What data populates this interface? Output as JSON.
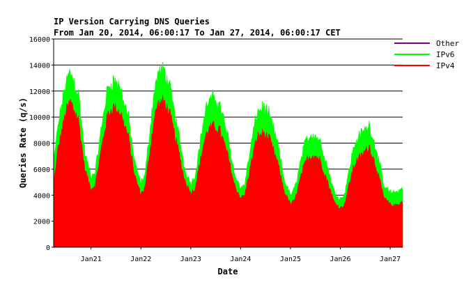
{
  "chart_data": {
    "type": "area",
    "stacked": true,
    "title": "IP Version Carrying DNS Queries",
    "subtitle": "From Jan 20, 2014, 06:00:17 To Jan 27, 2014, 06:00:17 CET",
    "xlabel": "Date",
    "ylabel": "Queries Rate (q/s)",
    "ylim": [
      0,
      16000
    ],
    "xlim_hours": [
      6,
      174
    ],
    "yticks": [
      0,
      2000,
      4000,
      6000,
      8000,
      10000,
      12000,
      14000,
      16000
    ],
    "xticks": [
      {
        "label": "Jan21",
        "hour": 24
      },
      {
        "label": "Jan22",
        "hour": 48
      },
      {
        "label": "Jan23",
        "hour": 72
      },
      {
        "label": "Jan24",
        "hour": 96
      },
      {
        "label": "Jan25",
        "hour": 120
      },
      {
        "label": "Jan26",
        "hour": 144
      },
      {
        "label": "Jan27",
        "hour": 168
      }
    ],
    "grid": "horizontal",
    "legend_position": "top-right",
    "series": [
      {
        "name": "Other",
        "color": "#800080",
        "hours": [
          6,
          174
        ],
        "values": [
          0,
          0
        ]
      },
      {
        "name": "IPv6",
        "color": "#00ff00",
        "hours": [
          6,
          8,
          12,
          14,
          18,
          21,
          24,
          26,
          30,
          32,
          35,
          38,
          42,
          45,
          48,
          50,
          54,
          56,
          59,
          62,
          66,
          69,
          72,
          74,
          78,
          80,
          83,
          86,
          90,
          93,
          96,
          98,
          102,
          104,
          107,
          110,
          114,
          117,
          120,
          122,
          126,
          128,
          131,
          134,
          138,
          141,
          144,
          146,
          150,
          152,
          155,
          158,
          162,
          165,
          168,
          170,
          174
        ],
        "values": [
          1500,
          1800,
          2200,
          2300,
          2000,
          1200,
          900,
          1000,
          1800,
          2000,
          2100,
          1900,
          1500,
          1000,
          800,
          1000,
          2000,
          2300,
          2400,
          2000,
          1400,
          900,
          700,
          900,
          1800,
          2100,
          2200,
          2000,
          1400,
          900,
          700,
          900,
          1600,
          1900,
          2000,
          1800,
          1400,
          900,
          700,
          900,
          1400,
          1600,
          1600,
          1500,
          1100,
          800,
          700,
          800,
          1400,
          1600,
          1700,
          1600,
          1300,
          900,
          900,
          1000,
          1000
        ]
      },
      {
        "name": "IPv4",
        "color": "#ff0000",
        "hours": [
          6,
          8,
          12,
          14,
          18,
          21,
          24,
          26,
          30,
          32,
          35,
          38,
          42,
          45,
          48,
          50,
          54,
          56,
          59,
          62,
          66,
          69,
          72,
          74,
          78,
          80,
          83,
          86,
          90,
          93,
          96,
          98,
          102,
          104,
          107,
          110,
          114,
          117,
          120,
          122,
          126,
          128,
          131,
          134,
          138,
          141,
          144,
          146,
          150,
          152,
          155,
          158,
          162,
          165,
          168,
          170,
          174
        ],
        "values": [
          4800,
          7500,
          10500,
          11200,
          9800,
          6000,
          4500,
          4800,
          8500,
          10200,
          10800,
          10400,
          8500,
          5500,
          4100,
          4600,
          9500,
          11000,
          11300,
          10200,
          7500,
          5200,
          4200,
          4500,
          7800,
          9000,
          9300,
          9000,
          7000,
          4800,
          3800,
          4000,
          7200,
          8500,
          8800,
          8300,
          6400,
          4300,
          3300,
          3600,
          6000,
          6800,
          7100,
          6800,
          5000,
          3500,
          3000,
          3300,
          6000,
          6700,
          7200,
          7800,
          5800,
          3800,
          3300,
          3200,
          3500
        ]
      }
    ]
  }
}
